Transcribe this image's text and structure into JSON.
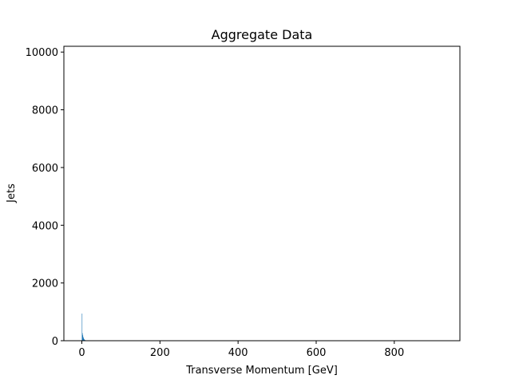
{
  "chart_data": {
    "type": "bar",
    "title": "Aggregate Data",
    "xlabel": "Transverse Momentum [GeV]",
    "ylabel": "Jets",
    "xlim": [
      -46,
      968
    ],
    "ylim": [
      0,
      10200
    ],
    "xticks": [
      0,
      200,
      400,
      600,
      800
    ],
    "yticks": [
      0,
      2000,
      4000,
      6000,
      8000,
      10000
    ],
    "grid": false,
    "bar_color": "#1f77b4",
    "bins": [
      {
        "x0": 0,
        "x1": 1,
        "y": 940
      },
      {
        "x0": 1,
        "x1": 2,
        "y": 260
      },
      {
        "x0": 2,
        "x1": 3,
        "y": 190
      },
      {
        "x0": 3,
        "x1": 4,
        "y": 130
      },
      {
        "x0": 4,
        "x1": 5,
        "y": 90
      },
      {
        "x0": 5,
        "x1": 6,
        "y": 60
      },
      {
        "x0": 6,
        "x1": 7,
        "y": 40
      },
      {
        "x0": 7,
        "x1": 8,
        "y": 28
      },
      {
        "x0": 8,
        "x1": 9,
        "y": 18
      },
      {
        "x0": 9,
        "x1": 10,
        "y": 12
      },
      {
        "x0": 10,
        "x1": 12,
        "y": 8
      },
      {
        "x0": 12,
        "x1": 15,
        "y": 5
      }
    ]
  }
}
